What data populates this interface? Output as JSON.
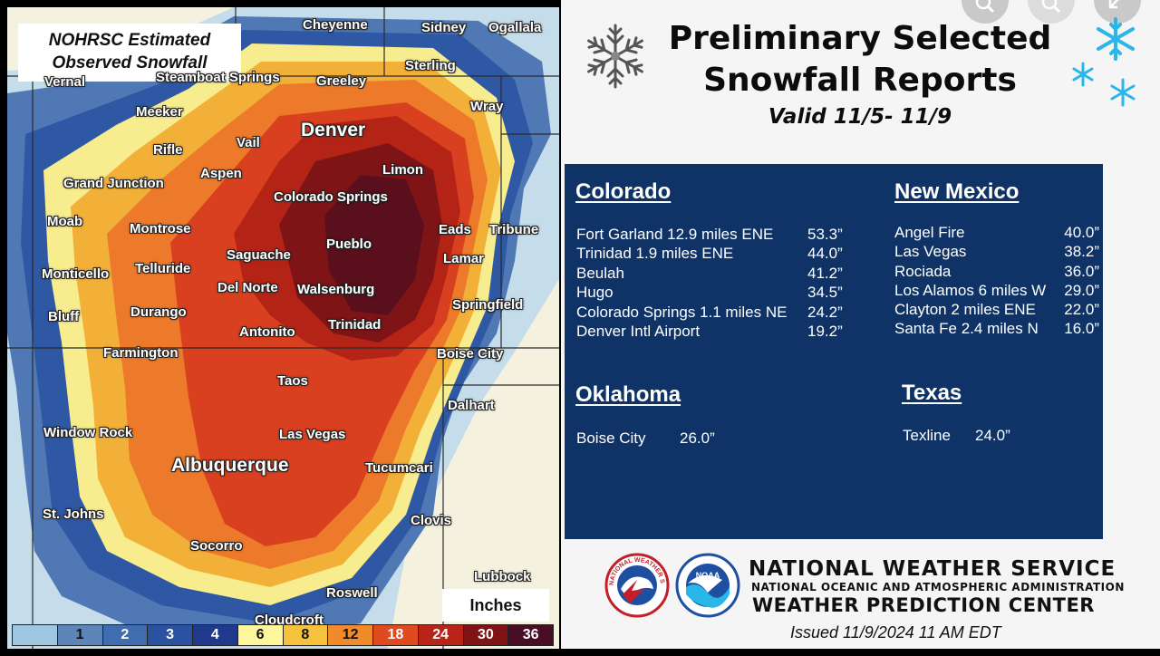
{
  "map": {
    "title_line1": "NOHRSC Estimated",
    "title_line2": "Observed Snowfall",
    "units_label": "Inches",
    "legend": [
      {
        "label": "",
        "color": "#9ec6e0"
      },
      {
        "label": "1",
        "color": "#5d86b8"
      },
      {
        "label": "2",
        "color": "#3f6db0"
      },
      {
        "label": "3",
        "color": "#2a52a0"
      },
      {
        "label": "4",
        "color": "#1f3a8c"
      },
      {
        "label": "6",
        "color": "#fff59a"
      },
      {
        "label": "8",
        "color": "#f6c23e"
      },
      {
        "label": "12",
        "color": "#f08a2a"
      },
      {
        "label": "18",
        "color": "#df4a1e"
      },
      {
        "label": "24",
        "color": "#b82417"
      },
      {
        "label": "30",
        "color": "#7e1416"
      },
      {
        "label": "36",
        "color": "#4a0d26"
      }
    ],
    "cities": [
      {
        "name": "Cheyenne",
        "big": false
      },
      {
        "name": "Sidney",
        "big": false
      },
      {
        "name": "Ogallala",
        "big": false
      },
      {
        "name": "Vernal",
        "big": false
      },
      {
        "name": "Steamboat Springs",
        "big": false
      },
      {
        "name": "Greeley",
        "big": false
      },
      {
        "name": "Sterling",
        "big": false
      },
      {
        "name": "Wray",
        "big": false
      },
      {
        "name": "Meeker",
        "big": false
      },
      {
        "name": "Denver",
        "big": true
      },
      {
        "name": "Vail",
        "big": false
      },
      {
        "name": "Rifle",
        "big": false
      },
      {
        "name": "Aspen",
        "big": false
      },
      {
        "name": "Limon",
        "big": false
      },
      {
        "name": "Grand Junction",
        "big": false
      },
      {
        "name": "Colorado Springs",
        "big": false
      },
      {
        "name": "Moab",
        "big": false
      },
      {
        "name": "Montrose",
        "big": false
      },
      {
        "name": "Eads",
        "big": false
      },
      {
        "name": "Tribune",
        "big": false
      },
      {
        "name": "Pueblo",
        "big": false
      },
      {
        "name": "Saguache",
        "big": false
      },
      {
        "name": "Lamar",
        "big": false
      },
      {
        "name": "Monticello",
        "big": false
      },
      {
        "name": "Telluride",
        "big": false
      },
      {
        "name": "Del Norte",
        "big": false
      },
      {
        "name": "Walsenburg",
        "big": false
      },
      {
        "name": "Springfield",
        "big": false
      },
      {
        "name": "Durango",
        "big": false
      },
      {
        "name": "Bluff",
        "big": false
      },
      {
        "name": "Trinidad",
        "big": false
      },
      {
        "name": "Antonito",
        "big": false
      },
      {
        "name": "Farmington",
        "big": false
      },
      {
        "name": "Boise City",
        "big": false
      },
      {
        "name": "Taos",
        "big": false
      },
      {
        "name": "Dalhart",
        "big": false
      },
      {
        "name": "Window Rock",
        "big": false
      },
      {
        "name": "Las Vegas",
        "big": false
      },
      {
        "name": "Albuquerque",
        "big": true
      },
      {
        "name": "Tucumcari",
        "big": false
      },
      {
        "name": "St. Johns",
        "big": false
      },
      {
        "name": "Clovis",
        "big": false
      },
      {
        "name": "Socorro",
        "big": false
      },
      {
        "name": "Lubbock",
        "big": false
      },
      {
        "name": "Roswell",
        "big": false
      },
      {
        "name": "Cloudcroft",
        "big": false
      }
    ]
  },
  "headline": {
    "line1": "Preliminary Selected",
    "line2": "Snowfall Reports",
    "valid": "Valid 11/5- 11/9"
  },
  "states": {
    "colorado": {
      "name": "Colorado",
      "reports": [
        {
          "location": "Fort Garland 12.9 miles ENE",
          "amount": "53.3”"
        },
        {
          "location": "Trinidad 1.9 miles ENE",
          "amount": "44.0”"
        },
        {
          "location": "Beulah",
          "amount": "41.2”"
        },
        {
          "location": "Hugo",
          "amount": "34.5”"
        },
        {
          "location": "Colorado Springs 1.1 miles NE",
          "amount": "24.2”"
        },
        {
          "location": "Denver Intl Airport",
          "amount": "19.2”"
        }
      ]
    },
    "new_mexico": {
      "name": "New Mexico",
      "reports": [
        {
          "location": "Angel Fire",
          "amount": "40.0”"
        },
        {
          "location": "Las Vegas",
          "amount": "38.2”"
        },
        {
          "location": "Rociada",
          "amount": "36.0”"
        },
        {
          "location": "Los Alamos 6 miles W",
          "amount": "29.0”"
        },
        {
          "location": "Clayton 2 miles ENE",
          "amount": "22.0”"
        },
        {
          "location": "Santa Fe 2.4 miles N",
          "amount": "16.0”"
        }
      ]
    },
    "oklahoma": {
      "name": "Oklahoma",
      "reports": [
        {
          "location": "Boise City",
          "amount": "26.0”"
        }
      ]
    },
    "texas": {
      "name": "Texas",
      "reports": [
        {
          "location": "Texline",
          "amount": "24.0”"
        }
      ]
    }
  },
  "footer": {
    "org_line1": "NATIONAL WEATHER SERVICE",
    "org_line2": "NATIONAL OCEANIC AND ATMOSPHERIC ADMINISTRATION",
    "org_line3": "WEATHER PREDICTION CENTER",
    "issued": "Issued 11/9/2024  11 AM EDT",
    "nws_logo_text": "NATIONAL WEATHER SERVICE",
    "noaa_logo_text": "NOAA"
  },
  "icons": [
    "snowflake-icon",
    "zoom-in-icon",
    "search-icon",
    "expand-icon"
  ]
}
